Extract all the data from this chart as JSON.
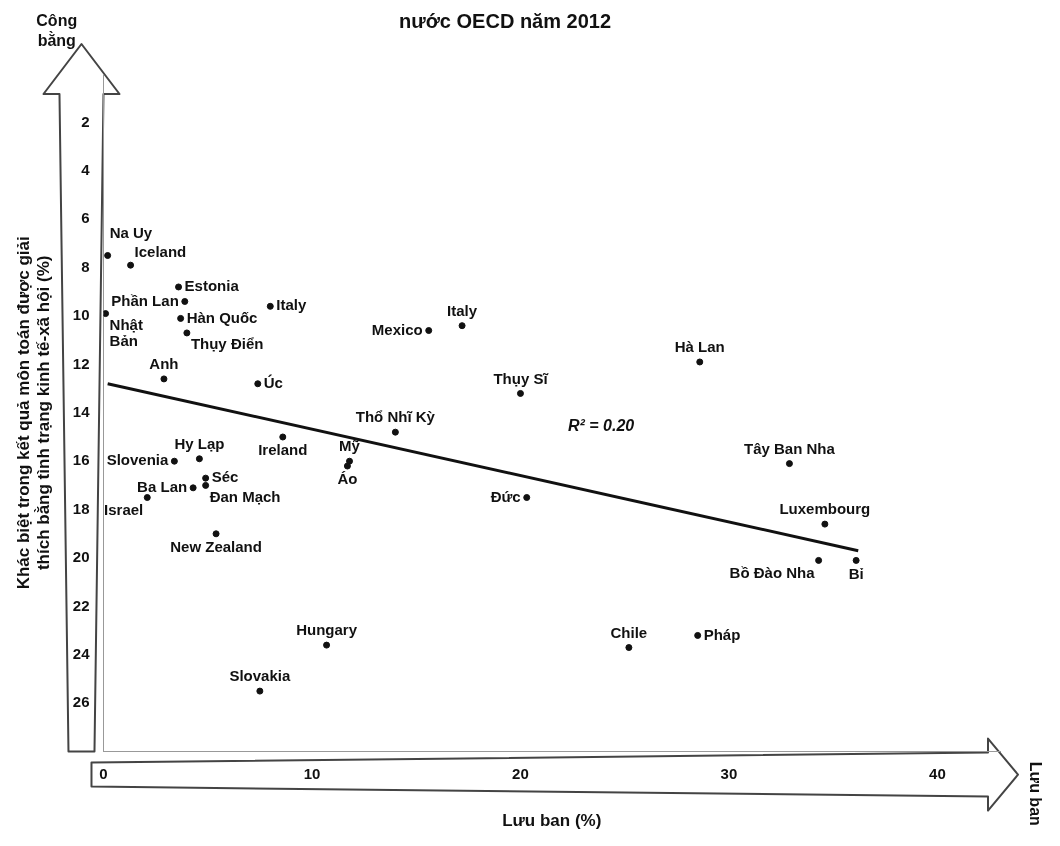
{
  "chart_data": {
    "type": "scatter",
    "title": "nước OECD năm 2012",
    "xlabel": "Lưu ban (%)",
    "ylabel": "Khác biệt trong kết quả môn toán được giải thích bằng tình trạng kinh tế-xã hội (%)",
    "xlim": [
      0,
      43
    ],
    "xticks": [
      0,
      10,
      20,
      30,
      40
    ],
    "ylim": [
      28,
      0
    ],
    "yticks": [
      2,
      4,
      6,
      8,
      10,
      12,
      14,
      16,
      18,
      20,
      22,
      24,
      26
    ],
    "grid": false,
    "legend": false,
    "series": [
      {
        "color": "#111111",
        "marker": "circle",
        "x": [
          0.2,
          1.3,
          3.6,
          3.9,
          0.1,
          8.0,
          3.7,
          4.0,
          2.9,
          7.4,
          15.6,
          17.2,
          20.0,
          28.6,
          14.0,
          8.6,
          11.8,
          11.7,
          4.6,
          3.4,
          4.9,
          4.9,
          4.3,
          2.1,
          5.4,
          10.7,
          7.5,
          20.3,
          32.9,
          34.6,
          34.3,
          36.1,
          25.2,
          28.5
        ],
        "values": [
          7.5,
          7.9,
          8.8,
          9.4,
          9.9,
          9.6,
          10.1,
          10.7,
          12.6,
          12.8,
          10.6,
          10.4,
          13.2,
          11.9,
          14.8,
          15.0,
          16.0,
          16.2,
          15.9,
          16.0,
          16.7,
          17.0,
          17.1,
          17.5,
          19.0,
          23.6,
          25.5,
          17.5,
          16.1,
          18.6,
          20.1,
          20.1,
          23.7,
          23.2
        ]
      },
      {
        "type": "line",
        "color": "#111111",
        "x": [
          0.2,
          36.2
        ],
        "values": [
          12.8,
          19.7
        ]
      }
    ],
    "annotations": [
      {
        "text": "Na Uy",
        "x": 0.2,
        "y": 7.5
      },
      {
        "text": "Iceland",
        "x": 1.3,
        "y": 7.9
      },
      {
        "text": "Estonia",
        "x": 3.6,
        "y": 8.8
      },
      {
        "text": "Phần Lan",
        "x": 3.9,
        "y": 9.4
      },
      {
        "text": "Nhật Bản",
        "x": 0.1,
        "y": 9.9
      },
      {
        "text": "Italy",
        "x": 8.0,
        "y": 9.6
      },
      {
        "text": "Hàn Quốc",
        "x": 3.7,
        "y": 10.1
      },
      {
        "text": "Thụy Điển",
        "x": 4.0,
        "y": 10.7
      },
      {
        "text": "Anh",
        "x": 2.9,
        "y": 12.6
      },
      {
        "text": "Úc",
        "x": 7.4,
        "y": 12.8
      },
      {
        "text": "Mexico",
        "x": 15.6,
        "y": 10.6
      },
      {
        "text": "Italy",
        "x": 17.2,
        "y": 10.4
      },
      {
        "text": "Thụy Sĩ",
        "x": 20.0,
        "y": 13.2
      },
      {
        "text": "Hà Lan",
        "x": 28.6,
        "y": 11.9
      },
      {
        "text": "Thổ Nhĩ Kỳ",
        "x": 14.0,
        "y": 14.8
      },
      {
        "text": "Ireland",
        "x": 8.6,
        "y": 15.0
      },
      {
        "text": "Mỹ",
        "x": 11.8,
        "y": 16.0
      },
      {
        "text": "Áo",
        "x": 11.7,
        "y": 16.2
      },
      {
        "text": "Hy Lạp",
        "x": 4.6,
        "y": 15.9
      },
      {
        "text": "Slovenia",
        "x": 3.4,
        "y": 16.0
      },
      {
        "text": "Séc",
        "x": 4.9,
        "y": 16.7
      },
      {
        "text": "Đan Mạch",
        "x": 4.9,
        "y": 17.0
      },
      {
        "text": "Ba Lan",
        "x": 4.3,
        "y": 17.1
      },
      {
        "text": "Israel",
        "x": 2.1,
        "y": 17.5
      },
      {
        "text": "New Zealand",
        "x": 5.4,
        "y": 19.0
      },
      {
        "text": "Hungary",
        "x": 10.7,
        "y": 23.6
      },
      {
        "text": "Slovakia",
        "x": 7.5,
        "y": 25.5
      },
      {
        "text": "Đức",
        "x": 20.3,
        "y": 17.5
      },
      {
        "text": "Tây Ban Nha",
        "x": 32.9,
        "y": 16.1
      },
      {
        "text": "Luxembourg",
        "x": 34.6,
        "y": 18.6
      },
      {
        "text": "Bồ Đào Nha",
        "x": 34.3,
        "y": 20.1
      },
      {
        "text": "Bỉ",
        "x": 36.1,
        "y": 20.1
      },
      {
        "text": "Chile",
        "x": 25.2,
        "y": 23.7
      },
      {
        "text": "Pháp",
        "x": 28.5,
        "y": 23.2
      },
      "R² = 0.20",
      "Công bằng",
      "Lưu ban"
    ]
  }
}
